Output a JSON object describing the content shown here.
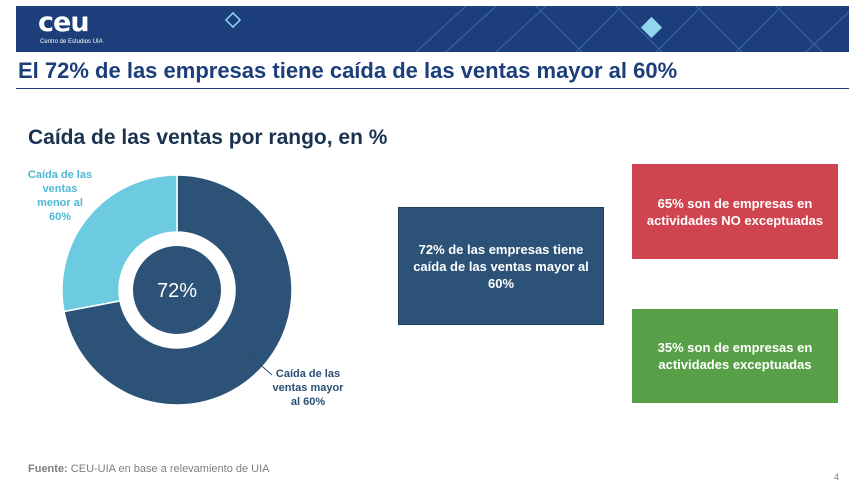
{
  "header": {
    "logo_text": "ceu",
    "logo_subtitle": "Centro de Estudios UIA"
  },
  "page_title": "El 72% de las empresas tiene caída de las ventas mayor al 60%",
  "chart_data": {
    "type": "pie",
    "title": "Caída de las ventas por rango, en %",
    "center_label": "72%",
    "categories": [
      "Caída de las ventas mayor al 60%",
      "Caída de las ventas menor al 60%"
    ],
    "values": [
      72,
      28
    ],
    "colors": [
      "#2c5277",
      "#6ccbe0"
    ]
  },
  "callouts": {
    "main": "72% de las empresas tiene caída de las ventas mayor al 60%",
    "red": "65% son de empresas en actividades NO exceptuadas",
    "green": "35% son de empresas en actividades exceptuadas"
  },
  "footer": {
    "source_label": "Fuente:",
    "source_text": " CEU-UIA en base a relevamiento de UIA",
    "page_number": "4"
  }
}
